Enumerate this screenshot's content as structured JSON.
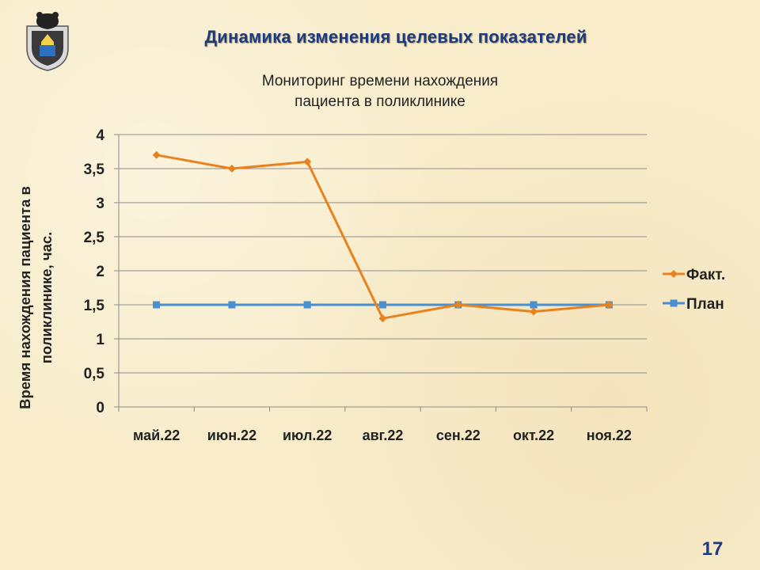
{
  "slide": {
    "title": "Динамика изменения целевых показателей",
    "page_number": "17"
  },
  "crest": {
    "icon": "coat-of-arms-bear-icon"
  },
  "chart_data": {
    "type": "line",
    "title_lines": [
      "Мониторинг времени нахождения",
      "пациента в поликлинике"
    ],
    "ylabel_lines": [
      "Время нахождения пациента в",
      "поликлинике, час."
    ],
    "xlabel": "",
    "categories": [
      "май.22",
      "июн.22",
      "июл.22",
      "авг.22",
      "сен.22",
      "окт.22",
      "ноя.22"
    ],
    "ylim": [
      0,
      4
    ],
    "yticks": [
      "0",
      "0,5",
      "1",
      "1,5",
      "2",
      "2,5",
      "3",
      "3,5",
      "4"
    ],
    "grid": true,
    "legend": "right",
    "series": [
      {
        "name": "Факт.",
        "values": [
          3.7,
          3.5,
          3.6,
          1.3,
          1.5,
          1.4,
          1.5
        ],
        "color": "#e8821e",
        "marker": "diamond"
      },
      {
        "name": "План",
        "values": [
          1.5,
          1.5,
          1.5,
          1.5,
          1.5,
          1.5,
          1.5
        ],
        "color": "#4a8fd0",
        "marker": "square"
      }
    ]
  }
}
